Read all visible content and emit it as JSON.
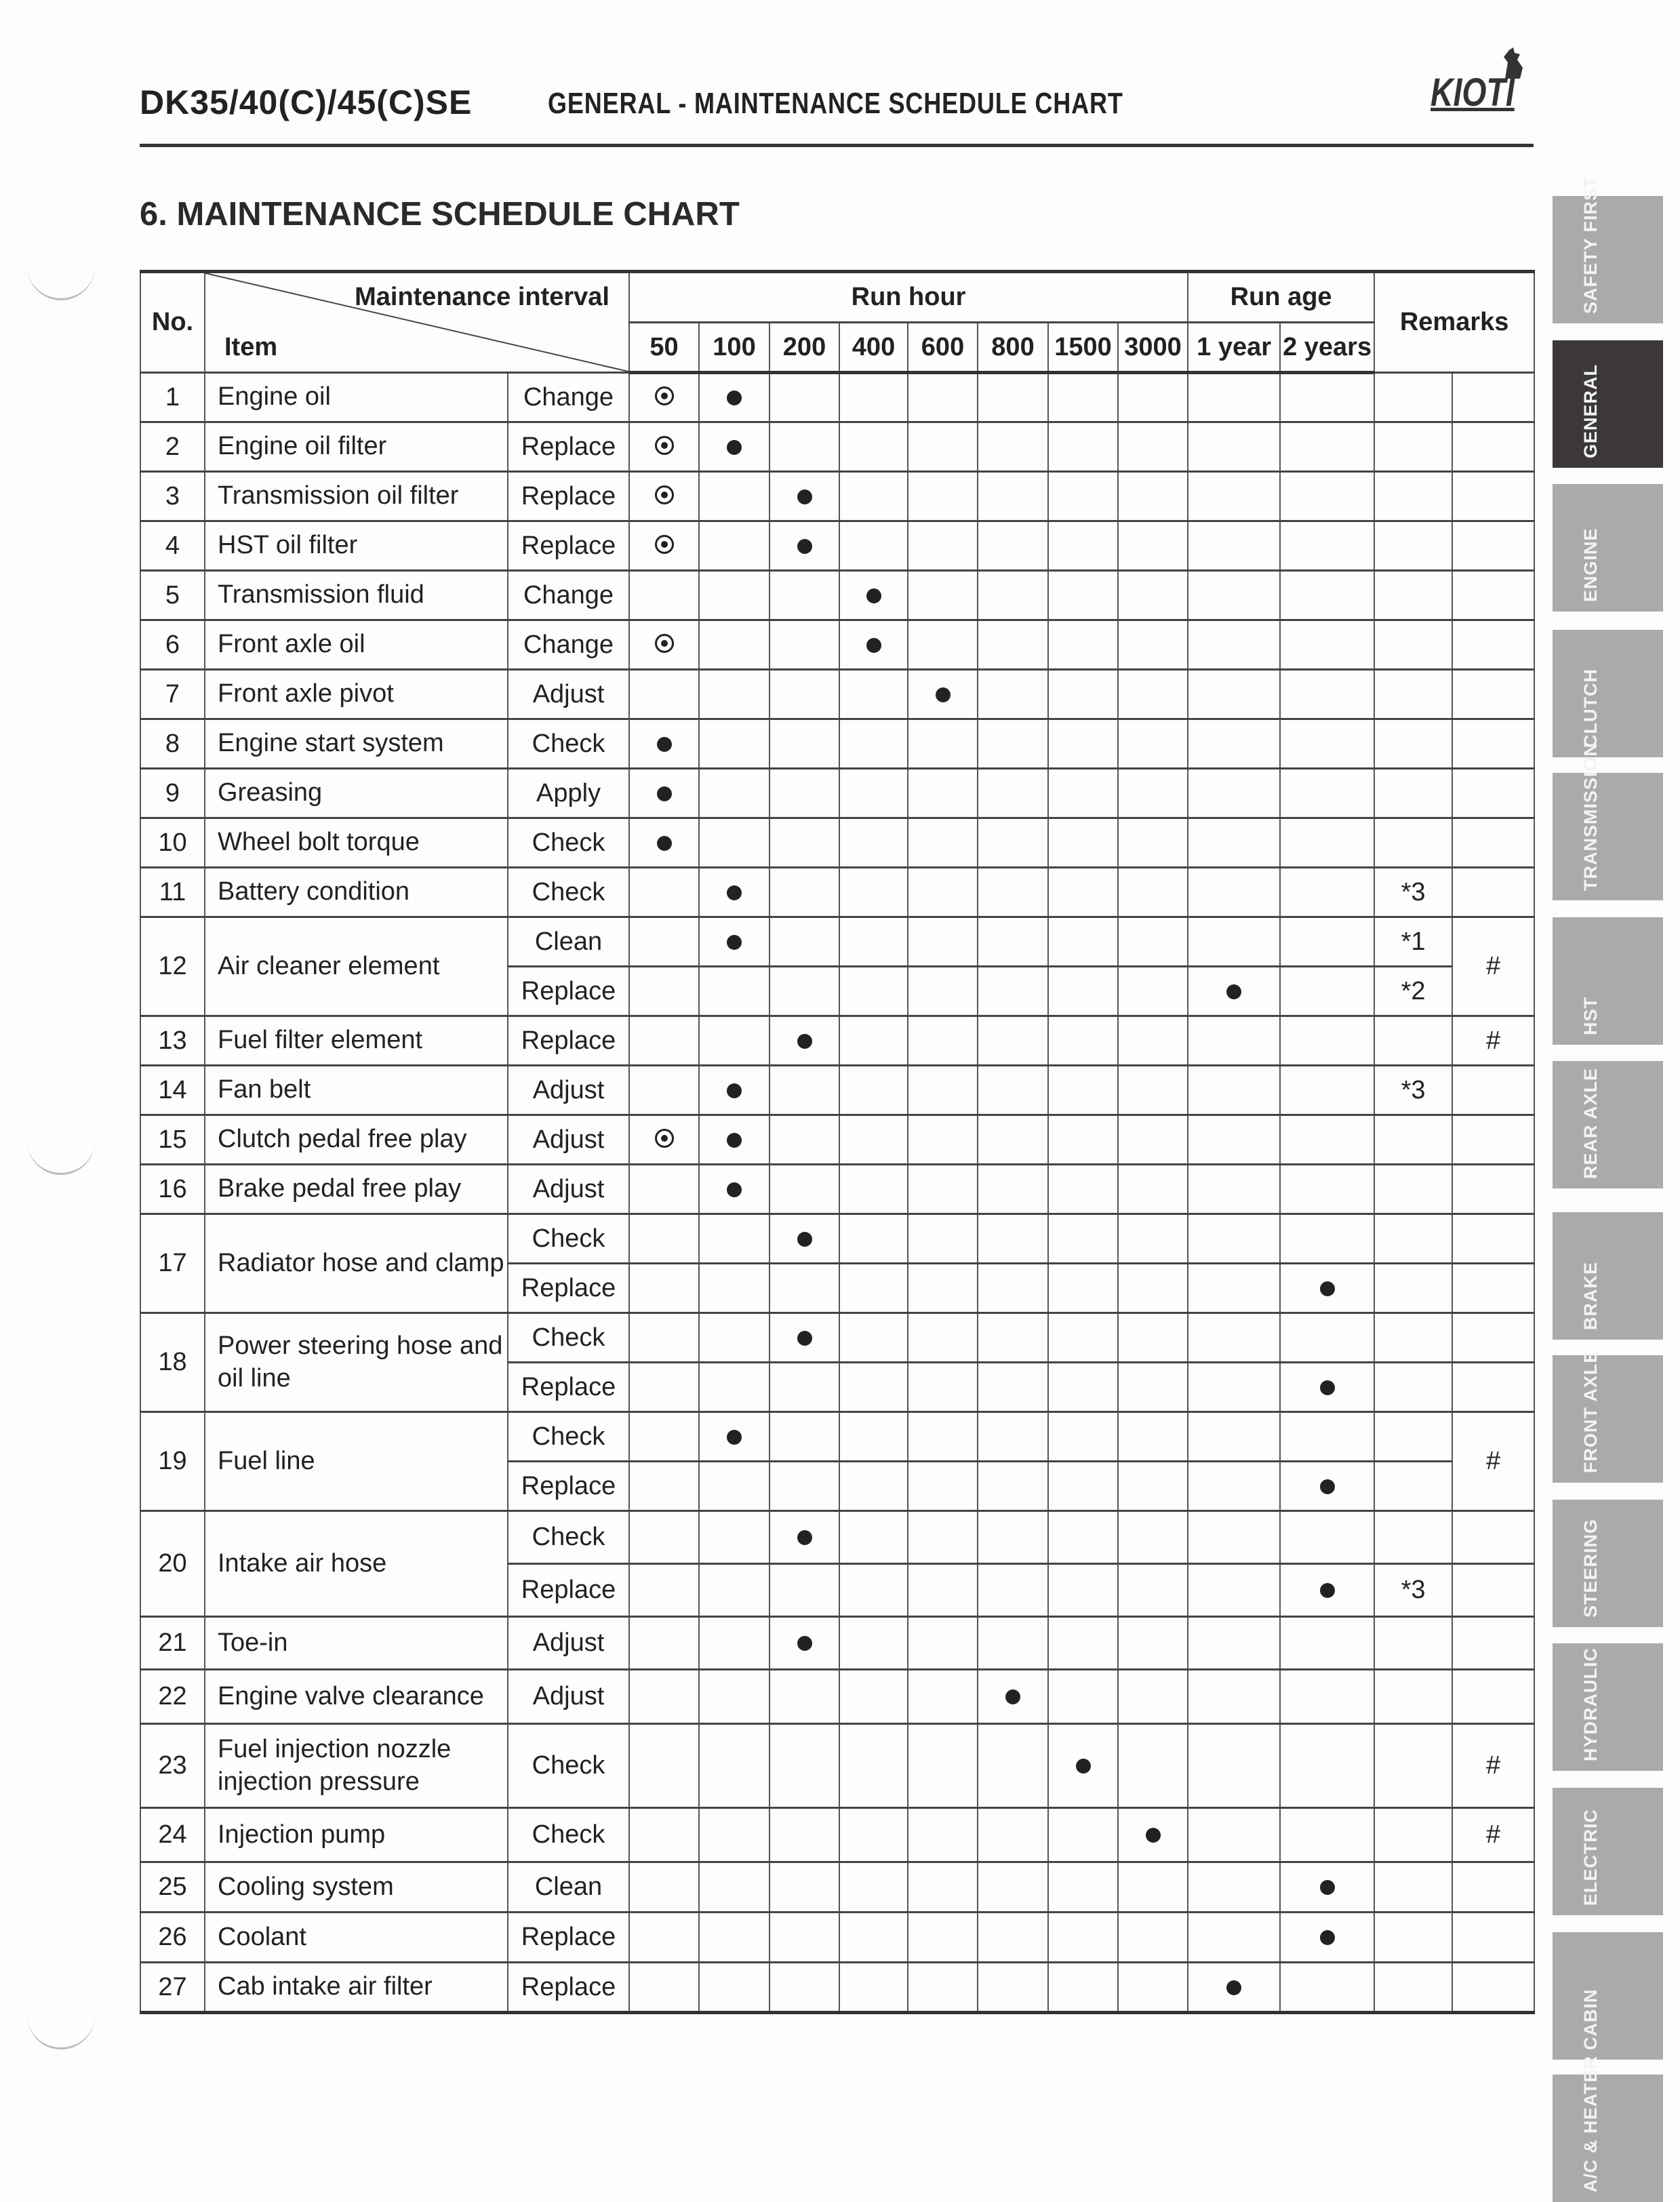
{
  "header": {
    "model": "DK35/40(C)/45(C)SE",
    "section": "GENERAL - MAINTENANCE SCHEDULE CHART",
    "logo": "KIOTI"
  },
  "page_title": "6. MAINTENANCE SCHEDULE CHART",
  "table": {
    "headers": {
      "no": "No.",
      "maintenance_interval": "Maintenance interval",
      "item": "Item",
      "run_hour": "Run hour",
      "run_age": "Run age",
      "remarks": "Remarks",
      "intervals": [
        "50",
        "100",
        "200",
        "400",
        "600",
        "800",
        "1500",
        "3000",
        "1 year",
        "2 years"
      ]
    },
    "legend_symbols": {
      "ring": "first service (circled dot)",
      "dot": "periodic service (dot)"
    },
    "rows": [
      {
        "no": "1",
        "item": "Engine oil",
        "actions": [
          {
            "action": "Change",
            "marks": {
              "50": "ring",
              "100": "dot"
            }
          }
        ]
      },
      {
        "no": "2",
        "item": "Engine oil filter",
        "actions": [
          {
            "action": "Replace",
            "marks": {
              "50": "ring",
              "100": "dot"
            }
          }
        ]
      },
      {
        "no": "3",
        "item": "Transmission oil filter",
        "actions": [
          {
            "action": "Replace",
            "marks": {
              "50": "ring",
              "200": "dot"
            }
          }
        ]
      },
      {
        "no": "4",
        "item": "HST oil filter",
        "actions": [
          {
            "action": "Replace",
            "marks": {
              "50": "ring",
              "200": "dot"
            }
          }
        ]
      },
      {
        "no": "5",
        "item": "Transmission fluid",
        "actions": [
          {
            "action": "Change",
            "marks": {
              "400": "dot"
            }
          }
        ]
      },
      {
        "no": "6",
        "item": "Front axle oil",
        "actions": [
          {
            "action": "Change",
            "marks": {
              "50": "ring",
              "400": "dot"
            }
          }
        ]
      },
      {
        "no": "7",
        "item": "Front axle pivot",
        "actions": [
          {
            "action": "Adjust",
            "marks": {
              "600": "dot"
            }
          }
        ]
      },
      {
        "no": "8",
        "item": "Engine start system",
        "actions": [
          {
            "action": "Check",
            "marks": {
              "50": "dot"
            }
          }
        ]
      },
      {
        "no": "9",
        "item": "Greasing",
        "actions": [
          {
            "action": "Apply",
            "marks": {
              "50": "dot"
            }
          }
        ]
      },
      {
        "no": "10",
        "item": "Wheel bolt torque",
        "actions": [
          {
            "action": "Check",
            "marks": {
              "50": "dot"
            }
          }
        ]
      },
      {
        "no": "11",
        "item": "Battery condition",
        "actions": [
          {
            "action": "Check",
            "marks": {
              "100": "dot"
            },
            "remark": "*3"
          }
        ]
      },
      {
        "no": "12",
        "item": "Air cleaner element",
        "hash": "#",
        "actions": [
          {
            "action": "Clean",
            "marks": {
              "100": "dot"
            },
            "remark": "*1"
          },
          {
            "action": "Replace",
            "marks": {
              "1 year": "dot"
            },
            "remark": "*2"
          }
        ]
      },
      {
        "no": "13",
        "item": "Fuel filter element",
        "hash": "#",
        "actions": [
          {
            "action": "Replace",
            "marks": {
              "200": "dot"
            }
          }
        ]
      },
      {
        "no": "14",
        "item": "Fan belt",
        "actions": [
          {
            "action": "Adjust",
            "marks": {
              "100": "dot"
            },
            "remark": "*3"
          }
        ]
      },
      {
        "no": "15",
        "item": "Clutch pedal free play",
        "actions": [
          {
            "action": "Adjust",
            "marks": {
              "50": "ring",
              "100": "dot"
            }
          }
        ]
      },
      {
        "no": "16",
        "item": "Brake pedal free play",
        "actions": [
          {
            "action": "Adjust",
            "marks": {
              "100": "dot"
            }
          }
        ]
      },
      {
        "no": "17",
        "item": "Radiator hose and clamp",
        "actions": [
          {
            "action": "Check",
            "marks": {
              "200": "dot"
            }
          },
          {
            "action": "Replace",
            "marks": {
              "2 years": "dot"
            }
          }
        ]
      },
      {
        "no": "18",
        "item": "Power steering hose and oil line",
        "actions": [
          {
            "action": "Check",
            "marks": {
              "200": "dot"
            }
          },
          {
            "action": "Replace",
            "marks": {
              "2 years": "dot"
            }
          }
        ]
      },
      {
        "no": "19",
        "item": "Fuel line",
        "hash": "#",
        "actions": [
          {
            "action": "Check",
            "marks": {
              "100": "dot"
            }
          },
          {
            "action": "Replace",
            "marks": {
              "2 years": "dot"
            }
          }
        ]
      },
      {
        "no": "20",
        "item": "Intake air hose",
        "actions": [
          {
            "action": "Check",
            "marks": {
              "200": "dot"
            }
          },
          {
            "action": "Replace",
            "marks": {
              "2 years": "dot"
            },
            "remark": "*3"
          }
        ]
      },
      {
        "no": "21",
        "item": "Toe-in",
        "actions": [
          {
            "action": "Adjust",
            "marks": {
              "200": "dot"
            }
          }
        ]
      },
      {
        "no": "22",
        "item": "Engine valve clearance",
        "actions": [
          {
            "action": "Adjust",
            "marks": {
              "800": "dot"
            }
          }
        ]
      },
      {
        "no": "23",
        "item": "Fuel injection nozzle injection pressure",
        "hash": "#",
        "actions": [
          {
            "action": "Check",
            "marks": {
              "1500": "dot"
            }
          }
        ]
      },
      {
        "no": "24",
        "item": "Injection pump",
        "hash": "#",
        "actions": [
          {
            "action": "Check",
            "marks": {
              "3000": "dot"
            }
          }
        ]
      },
      {
        "no": "25",
        "item": "Cooling system",
        "actions": [
          {
            "action": "Clean",
            "marks": {
              "2 years": "dot"
            }
          }
        ]
      },
      {
        "no": "26",
        "item": "Coolant",
        "actions": [
          {
            "action": "Replace",
            "marks": {
              "2 years": "dot"
            }
          }
        ]
      },
      {
        "no": "27",
        "item": "Cab intake air filter",
        "actions": [
          {
            "action": "Replace",
            "marks": {
              "1 year": "dot"
            }
          }
        ]
      }
    ]
  },
  "side_tabs": [
    {
      "label": "SAFETY FIRST",
      "active": false
    },
    {
      "label": "GENERAL",
      "active": true
    },
    {
      "label": "ENGINE",
      "active": false
    },
    {
      "label": "CLUTCH",
      "active": false
    },
    {
      "label": "TRANSMISSION",
      "active": false
    },
    {
      "label": "HST",
      "active": false
    },
    {
      "label": "REAR AXLE",
      "active": false
    },
    {
      "label": "BRAKE",
      "active": false
    },
    {
      "label": "FRONT AXLE",
      "active": false
    },
    {
      "label": "STEERING",
      "active": false
    },
    {
      "label": "HYDRAULIC",
      "active": false
    },
    {
      "label": "ELECTRIC",
      "active": false
    },
    {
      "label": "CABIN",
      "active": false
    },
    {
      "label": "A/C & HEATER",
      "active": false
    }
  ],
  "colors": {
    "tab": "#a9aaac",
    "tab_active": "#3b3837",
    "ink": "#222222"
  }
}
